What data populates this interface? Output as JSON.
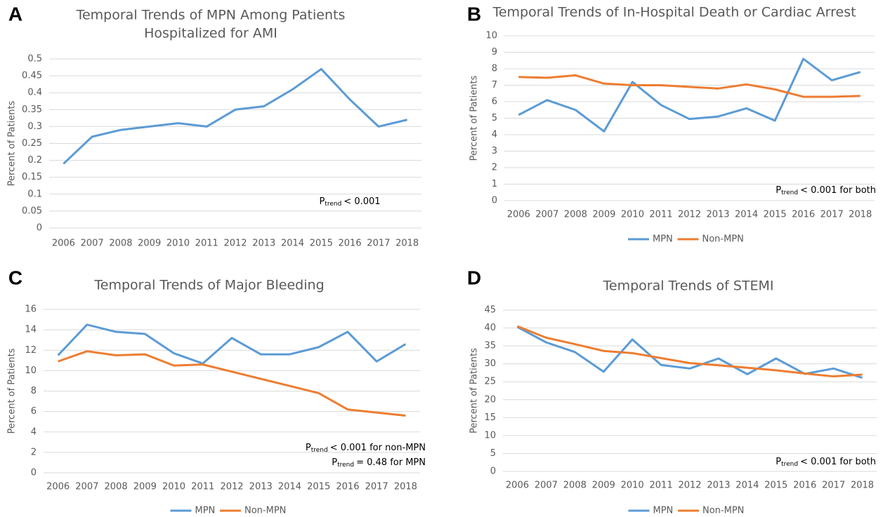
{
  "chart_data": [
    {
      "type": "line",
      "panel": "A",
      "title": [
        "Temporal Trends of MPN Among Patients",
        "Hospitalized for AMI"
      ],
      "y_label": "Percent of Patients",
      "categories": [
        "2006",
        "2007",
        "2008",
        "2009",
        "2010",
        "2011",
        "2012",
        "2013",
        "2014",
        "2015",
        "2016",
        "2017",
        "2018"
      ],
      "values": [
        0.19,
        0.27,
        0.29,
        0.3,
        0.31,
        0.3,
        0.35,
        0.36,
        0.41,
        0.47,
        0.38,
        0.3,
        0.32
      ],
      "color": "#5b9bd5",
      "ylim": [
        0,
        0.5
      ],
      "yticks": [
        0,
        0.05,
        0.1,
        0.15,
        0.2,
        0.25,
        0.3,
        0.35,
        0.4,
        0.45,
        0.5
      ],
      "grid": true,
      "annotations": [
        {
          "p": "P",
          "sub": "trend",
          "text": "< 0.001"
        }
      ]
    },
    {
      "type": "line",
      "panel": "B",
      "title": [
        "Temporal Trends of In-Hospital Death or Cardiac Arrest"
      ],
      "y_label": "Percent of Patients",
      "categories": [
        "2006",
        "2007",
        "2008",
        "2009",
        "2010",
        "2011",
        "2012",
        "2013",
        "2014",
        "2015",
        "2016",
        "2017",
        "2018"
      ],
      "series": [
        {
          "name": "MPN",
          "color": "#5b9bd5",
          "values": [
            5.2,
            6.1,
            5.5,
            4.2,
            7.2,
            5.8,
            4.95,
            5.1,
            5.6,
            4.85,
            8.6,
            7.3,
            7.8
          ]
        },
        {
          "name": "Non-MPN",
          "color": "#ed7d31",
          "values": [
            7.5,
            7.45,
            7.6,
            7.1,
            7.0,
            7.0,
            6.9,
            6.8,
            7.05,
            6.75,
            6.3,
            6.3,
            6.35
          ]
        }
      ],
      "ylim": [
        0,
        10
      ],
      "yticks": [
        0,
        1,
        2,
        3,
        4,
        5,
        6,
        7,
        8,
        9,
        10
      ],
      "grid": true,
      "legend": "bottom",
      "annotations": [
        {
          "p": "P",
          "sub": "trend",
          "text": "< 0.001 for both"
        }
      ]
    },
    {
      "type": "line",
      "panel": "C",
      "title": [
        "Temporal Trends of Major Bleeding"
      ],
      "y_label": "Percent of Patients",
      "categories": [
        "2006",
        "2007",
        "2008",
        "2009",
        "2010",
        "2011",
        "2012",
        "2013",
        "2014",
        "2015",
        "2016",
        "2017",
        "2018"
      ],
      "series": [
        {
          "name": "MPN",
          "color": "#5b9bd5",
          "values": [
            11.5,
            14.5,
            13.8,
            13.6,
            11.7,
            10.7,
            13.2,
            11.6,
            11.6,
            12.3,
            13.8,
            10.9,
            12.6
          ]
        },
        {
          "name": "Non-MPN",
          "color": "#ed7d31",
          "values": [
            10.9,
            11.9,
            11.5,
            11.6,
            10.5,
            10.6,
            9.9,
            9.2,
            8.5,
            7.8,
            6.2,
            5.9,
            5.6
          ]
        }
      ],
      "ylim": [
        0,
        16
      ],
      "yticks": [
        0,
        2,
        4,
        6,
        8,
        10,
        12,
        14,
        16
      ],
      "grid": true,
      "legend": "bottom",
      "annotations": [
        {
          "p": "P",
          "sub": "trend",
          "text": "< 0.001 for non-MPN"
        },
        {
          "p": "P",
          "sub": "trend",
          "text": "= 0.48 for MPN"
        }
      ]
    },
    {
      "type": "line",
      "panel": "D",
      "title": [
        "Temporal Trends of STEMI"
      ],
      "y_label": "Percent of Patients",
      "categories": [
        "2006",
        "2007",
        "2008",
        "2009",
        "2010",
        "2011",
        "2012",
        "2013",
        "2014",
        "2015",
        "2016",
        "2017",
        "2018"
      ],
      "series": [
        {
          "name": "MPN",
          "color": "#5b9bd5",
          "values": [
            40.3,
            36,
            33.3,
            27.8,
            36.8,
            29.7,
            28.7,
            31.5,
            27.1,
            31.5,
            27.2,
            28.7,
            26.1
          ]
        },
        {
          "name": "Non-MPN",
          "color": "#ed7d31",
          "values": [
            40.5,
            37.3,
            35.5,
            33.6,
            33,
            31.6,
            30.2,
            29.6,
            28.9,
            28.2,
            27.3,
            26.5,
            27
          ]
        }
      ],
      "ylim": [
        0,
        45
      ],
      "yticks": [
        0,
        5,
        10,
        15,
        20,
        25,
        30,
        35,
        40,
        45
      ],
      "grid": true,
      "legend": "bottom",
      "annotations": [
        {
          "p": "P",
          "sub": "trend",
          "text": "< 0.001 for both"
        }
      ]
    }
  ]
}
